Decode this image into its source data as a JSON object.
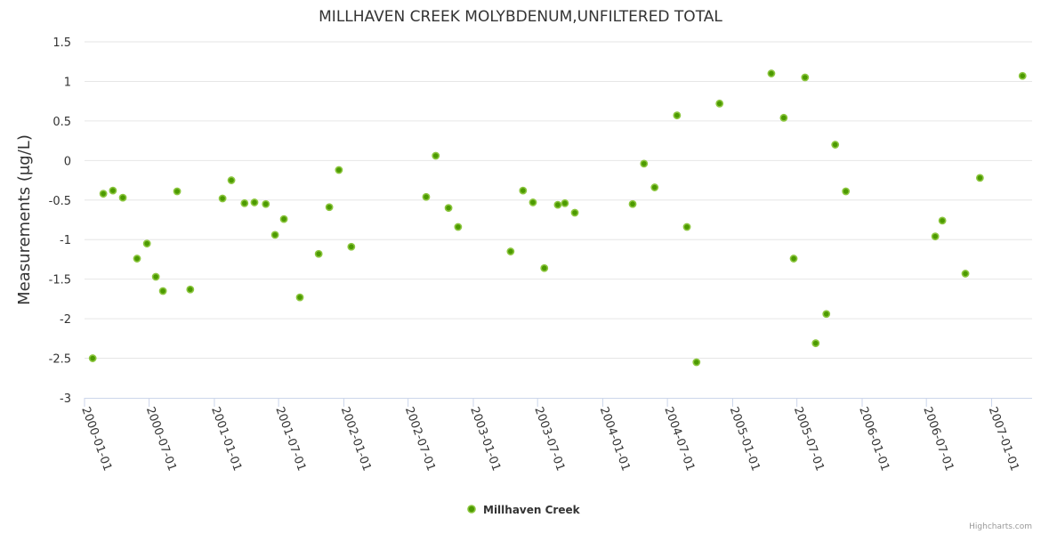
{
  "chart_data": {
    "type": "scatter",
    "title": "MILLHAVEN CREEK MOLYBDENUM,UNFILTERED TOTAL",
    "xlabel": "",
    "ylabel": "Measurements (μg/L)",
    "xlim": [
      "2000-01-01",
      "2007-04-25"
    ],
    "ylim": [
      -3,
      1.5
    ],
    "yticks": [
      -3,
      -2.5,
      -2,
      -1.5,
      -1,
      -0.5,
      0,
      0.5,
      1,
      1.5
    ],
    "xticks": [
      "2000-01-01",
      "2000-07-01",
      "2001-01-01",
      "2001-07-01",
      "2002-01-01",
      "2002-07-01",
      "2003-01-01",
      "2003-07-01",
      "2004-01-01",
      "2004-07-01",
      "2005-01-01",
      "2005-07-01",
      "2006-01-01",
      "2006-07-01",
      "2007-01-01"
    ],
    "grid": true,
    "legend_position": "bottom-center",
    "credits": "Highcharts.com",
    "series": [
      {
        "name": "Millhaven Creek",
        "color": "#4c9a00",
        "border_color": "#8cc63f",
        "points": [
          [
            "2000-01-24",
            -2.5
          ],
          [
            "2000-02-23",
            -0.42
          ],
          [
            "2000-03-21",
            -0.38
          ],
          [
            "2000-04-18",
            -0.47
          ],
          [
            "2000-05-28",
            -1.24
          ],
          [
            "2000-06-25",
            -1.05
          ],
          [
            "2000-07-20",
            -1.47
          ],
          [
            "2000-08-09",
            -1.65
          ],
          [
            "2000-09-18",
            -0.39
          ],
          [
            "2000-10-25",
            -1.63
          ],
          [
            "2001-01-24",
            -0.48
          ],
          [
            "2001-02-18",
            -0.25
          ],
          [
            "2001-03-27",
            -0.54
          ],
          [
            "2001-04-24",
            -0.53
          ],
          [
            "2001-05-26",
            -0.55
          ],
          [
            "2001-06-21",
            -0.94
          ],
          [
            "2001-07-16",
            -0.74
          ],
          [
            "2001-08-30",
            -1.73
          ],
          [
            "2001-10-22",
            -1.18
          ],
          [
            "2001-11-21",
            -0.59
          ],
          [
            "2001-12-18",
            -0.12
          ],
          [
            "2002-01-22",
            -1.09
          ],
          [
            "2002-08-21",
            -0.46
          ],
          [
            "2002-09-17",
            0.06
          ],
          [
            "2002-10-23",
            -0.6
          ],
          [
            "2002-11-19",
            -0.84
          ],
          [
            "2003-04-16",
            -1.15
          ],
          [
            "2003-05-21",
            -0.38
          ],
          [
            "2003-06-18",
            -0.53
          ],
          [
            "2003-07-20",
            -1.36
          ],
          [
            "2003-08-27",
            -0.56
          ],
          [
            "2003-09-16",
            -0.54
          ],
          [
            "2003-10-14",
            -0.66
          ],
          [
            "2004-03-25",
            -0.55
          ],
          [
            "2004-04-26",
            -0.04
          ],
          [
            "2004-05-26",
            -0.34
          ],
          [
            "2004-07-28",
            0.57
          ],
          [
            "2004-08-25",
            -0.84
          ],
          [
            "2004-09-21",
            -2.55
          ],
          [
            "2004-11-25",
            0.72
          ],
          [
            "2005-04-20",
            1.1
          ],
          [
            "2005-05-25",
            0.54
          ],
          [
            "2005-06-22",
            -1.24
          ],
          [
            "2005-07-24",
            1.05
          ],
          [
            "2005-08-23",
            -2.31
          ],
          [
            "2005-09-22",
            -1.94
          ],
          [
            "2005-10-17",
            0.2
          ],
          [
            "2005-11-16",
            -0.39
          ],
          [
            "2006-07-26",
            -0.96
          ],
          [
            "2006-08-15",
            -0.76
          ],
          [
            "2006-10-19",
            -1.43
          ],
          [
            "2006-11-29",
            -0.22
          ],
          [
            "2007-03-29",
            1.07
          ]
        ]
      }
    ]
  }
}
